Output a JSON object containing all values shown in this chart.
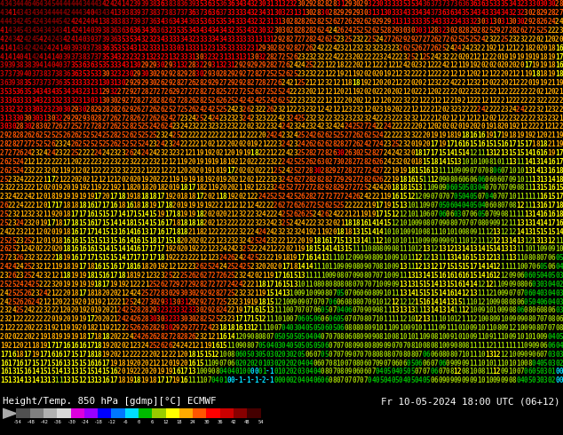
{
  "title_left": "Height/Temp. 850 hPa [gdmp][°C] ECMWF",
  "title_right": "Fr 10-05-2024 18:00 UTC (06+12)",
  "colorbar_levels": [
    -54,
    -48,
    -42,
    -36,
    -30,
    -24,
    -18,
    -12,
    -6,
    0,
    6,
    12,
    18,
    24,
    30,
    36,
    42,
    48,
    54
  ],
  "colorbar_colors": [
    "#505050",
    "#808080",
    "#b0b0b0",
    "#d8d8d8",
    "#dd00dd",
    "#9900ff",
    "#0000ff",
    "#0077ff",
    "#00ddff",
    "#00bb00",
    "#99cc00",
    "#ffff00",
    "#ffaa00",
    "#ff5500",
    "#ff0000",
    "#cc0000",
    "#880000",
    "#440000"
  ],
  "bg_color": "#000000",
  "rows": 44,
  "cols": 72,
  "fontsize": 5.5,
  "char_fontsize": 5.5
}
